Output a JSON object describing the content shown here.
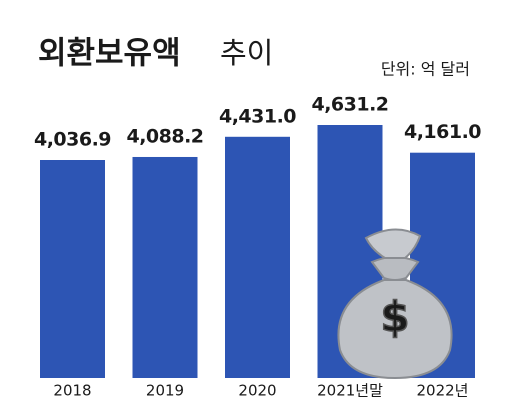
{
  "chart_data": {
    "type": "bar",
    "title": "외환보유액",
    "subtitle": "추이",
    "unit": "단위: 억 달러",
    "categories": [
      "2018",
      "2019",
      "2020",
      "2021년말",
      "2022년"
    ],
    "values": [
      4036.9,
      4088.2,
      4431.0,
      4631.2,
      4161.0
    ],
    "value_labels": [
      "4,036.9",
      "4,088.2",
      "4,431.0",
      "4,631.2",
      "4,161.0"
    ],
    "color": "#2d55b4"
  }
}
